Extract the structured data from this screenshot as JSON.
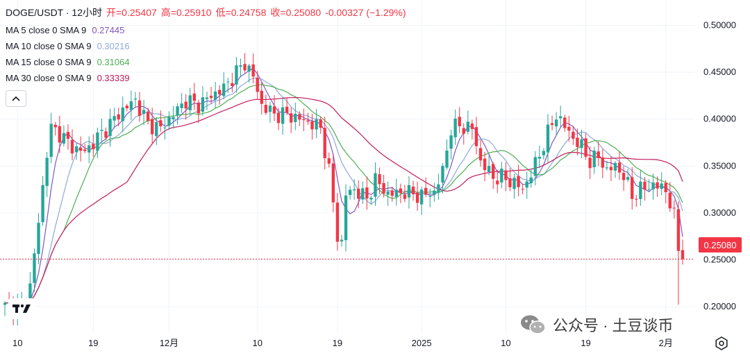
{
  "header": {
    "symbol": "DOGE/USDT · 12小时",
    "open": "开=0.25407",
    "high": "高=0.25910",
    "low": "低=0.24758",
    "close": "收=0.25080",
    "change": "-0.00327 (−1.29%)"
  },
  "indicators": [
    {
      "label": "MA 5 close 0 SMA 9",
      "value": "0.27445",
      "color": "#7e57c2"
    },
    {
      "label": "MA 10 close 0 SMA 9",
      "value": "0.30216",
      "color": "#8fa8d8"
    },
    {
      "label": "MA 15 close 0 SMA 9",
      "value": "0.31064",
      "color": "#4caf50"
    },
    {
      "label": "MA 30 close 0 SMA 9",
      "value": "0.33339",
      "color": "#c2185b"
    }
  ],
  "price_label": "0.25080",
  "watermark": "公众号 · 土豆谈币",
  "colors": {
    "up": "#26a69a",
    "down": "#f23645"
  },
  "chart_data": {
    "type": "candlestick",
    "title": "DOGE/USDT 12小时",
    "y_ticks": [
      "0.20000",
      "0.25000",
      "0.30000",
      "0.35000",
      "0.40000",
      "0.45000",
      "0.50000"
    ],
    "y_tick_values": [
      0.2,
      0.25,
      0.3,
      0.35,
      0.4,
      0.45,
      0.5
    ],
    "ylim": [
      0.172,
      0.527
    ],
    "x_ticks": [
      "10",
      "19",
      "12月",
      "10",
      "19",
      "2025",
      "10",
      "19",
      "2月"
    ],
    "x_tick_positions": [
      3,
      21,
      39,
      60,
      79,
      99,
      119,
      138,
      157
    ],
    "bar_count": 162,
    "last_price": 0.2508,
    "anchors": [
      [
        0,
        0.2
      ],
      [
        4,
        0.2
      ],
      [
        6,
        0.222
      ],
      [
        8,
        0.29
      ],
      [
        10,
        0.365
      ],
      [
        11,
        0.39
      ],
      [
        13,
        0.385
      ],
      [
        16,
        0.37
      ],
      [
        19,
        0.365
      ],
      [
        22,
        0.38
      ],
      [
        25,
        0.395
      ],
      [
        28,
        0.41
      ],
      [
        31,
        0.42
      ],
      [
        34,
        0.395
      ],
      [
        37,
        0.39
      ],
      [
        40,
        0.405
      ],
      [
        43,
        0.42
      ],
      [
        46,
        0.415
      ],
      [
        49,
        0.425
      ],
      [
        52,
        0.433
      ],
      [
        55,
        0.45
      ],
      [
        57,
        0.46
      ],
      [
        59,
        0.445
      ],
      [
        61,
        0.415
      ],
      [
        64,
        0.405
      ],
      [
        67,
        0.405
      ],
      [
        70,
        0.4
      ],
      [
        73,
        0.395
      ],
      [
        75,
        0.39
      ],
      [
        77,
        0.345
      ],
      [
        79,
        0.275
      ],
      [
        80,
        0.268
      ],
      [
        81,
        0.32
      ],
      [
        83,
        0.325
      ],
      [
        86,
        0.315
      ],
      [
        88,
        0.335
      ],
      [
        91,
        0.32
      ],
      [
        95,
        0.322
      ],
      [
        99,
        0.318
      ],
      [
        102,
        0.322
      ],
      [
        104,
        0.345
      ],
      [
        106,
        0.39
      ],
      [
        108,
        0.393
      ],
      [
        111,
        0.39
      ],
      [
        113,
        0.355
      ],
      [
        116,
        0.338
      ],
      [
        118,
        0.338
      ],
      [
        121,
        0.332
      ],
      [
        123,
        0.325
      ],
      [
        125,
        0.342
      ],
      [
        127,
        0.362
      ],
      [
        129,
        0.385
      ],
      [
        131,
        0.405
      ],
      [
        133,
        0.392
      ],
      [
        135,
        0.38
      ],
      [
        137,
        0.37
      ],
      [
        139,
        0.355
      ],
      [
        141,
        0.36
      ],
      [
        143,
        0.345
      ],
      [
        145,
        0.35
      ],
      [
        147,
        0.34
      ],
      [
        149,
        0.318
      ],
      [
        151,
        0.325
      ],
      [
        154,
        0.33
      ],
      [
        157,
        0.325
      ],
      [
        159,
        0.295
      ],
      [
        160,
        0.263
      ],
      [
        161,
        0.2508
      ]
    ],
    "ma_series": [
      {
        "name": "MA 5 close 0 SMA 9",
        "period": 5,
        "last": 0.27445
      },
      {
        "name": "MA 10 close 0 SMA 9",
        "period": 10,
        "last": 0.30216
      },
      {
        "name": "MA 15 close 0 SMA 9",
        "period": 15,
        "last": 0.31064
      },
      {
        "name": "MA 30 close 0 SMA 9",
        "period": 30,
        "last": 0.33339
      }
    ]
  }
}
